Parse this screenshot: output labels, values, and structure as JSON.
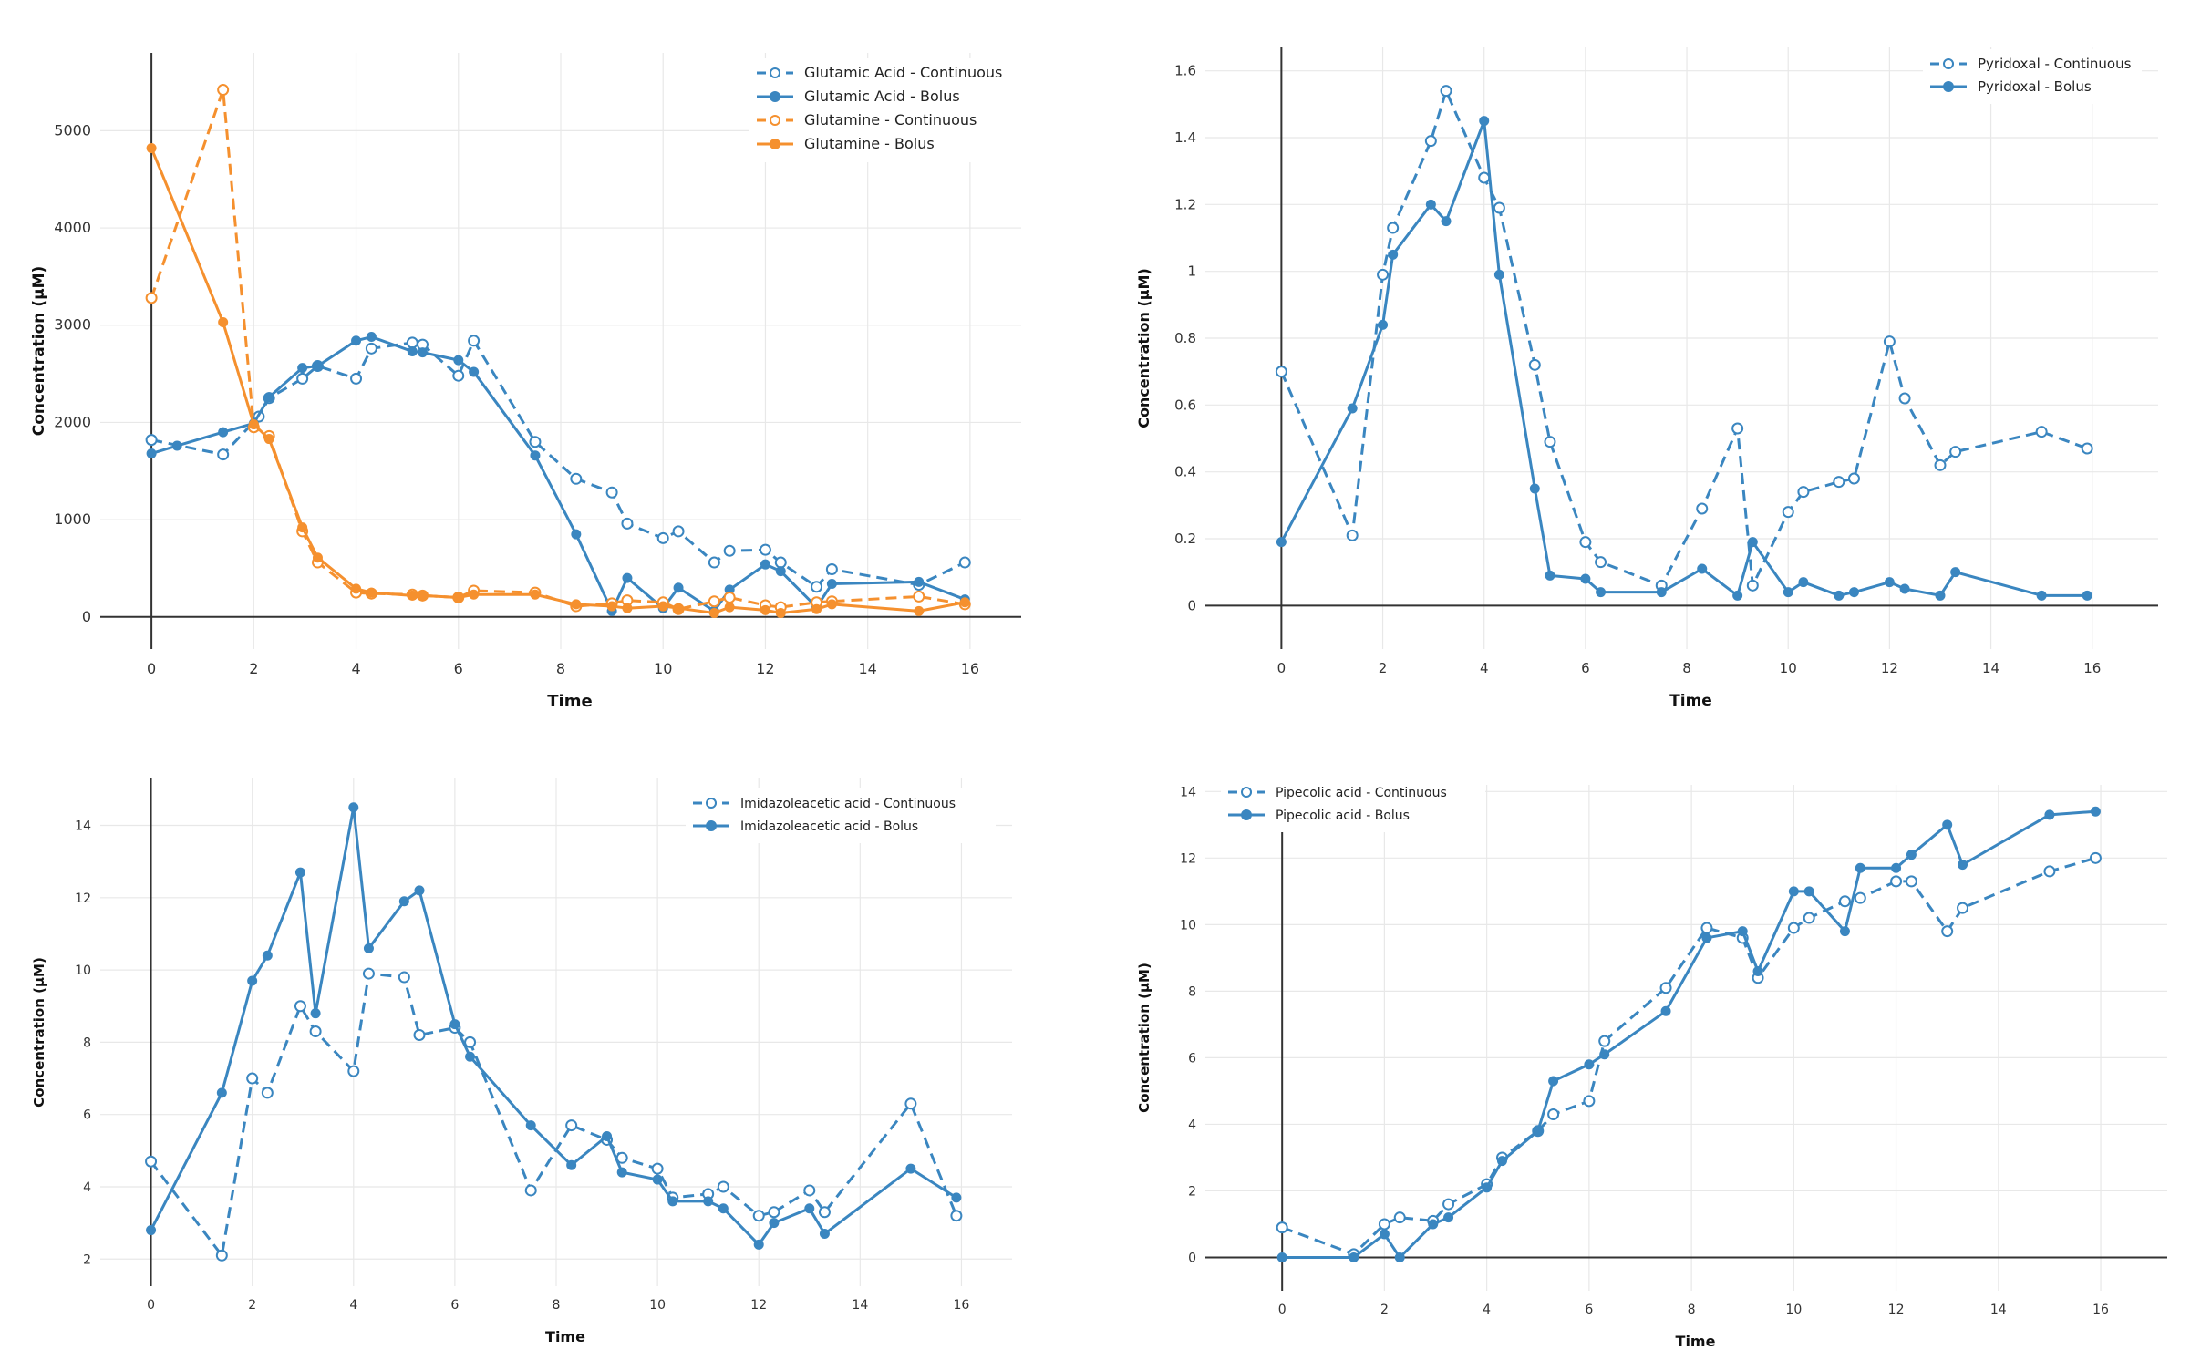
{
  "colors": {
    "blue": "#3a86c0",
    "orange": "#f5902e",
    "grid": "#e8e8e8",
    "axis": "#333333"
  },
  "chart_data": [
    {
      "type": "line",
      "xlabel": "Time",
      "ylabel": "Concentration (μM)",
      "xlim": [
        -1,
        17
      ],
      "ylim": [
        -330,
        5800
      ],
      "xticks": [
        0,
        2,
        4,
        6,
        8,
        10,
        12,
        14,
        16
      ],
      "xticklabels": [
        "0",
        "2",
        "4",
        "6",
        "8",
        "10",
        "12",
        "14",
        "16"
      ],
      "yticks": [
        0,
        1000,
        2000,
        3000,
        4000,
        5000
      ],
      "yticklabels": [
        "0",
        "1000",
        "2000",
        "3000",
        "4000",
        "5000"
      ],
      "grid": true,
      "legend_position": "top-right",
      "series": [
        {
          "name": "Glutamic Acid - Continuous",
          "color": "#3a86c0",
          "style": "dashed",
          "marker": "open",
          "x": [
            0,
            1.4,
            2.1,
            2.3,
            2.95,
            3.25,
            4.0,
            4.3,
            5.1,
            5.3,
            6.0,
            6.3,
            7.5,
            8.3,
            9.0,
            9.3,
            10.0,
            10.3,
            11.0,
            11.3,
            12.0,
            12.3,
            13.0,
            13.3,
            15.0,
            15.9
          ],
          "y": [
            1820,
            1670,
            2060,
            2250,
            2450,
            2580,
            2450,
            2760,
            2820,
            2800,
            2480,
            2840,
            1800,
            1420,
            1280,
            960,
            810,
            880,
            560,
            680,
            690,
            560,
            310,
            490,
            330,
            560
          ]
        },
        {
          "name": "Glutamic Acid - Bolus",
          "color": "#3a86c0",
          "style": "solid",
          "marker": "filled",
          "x": [
            0,
            0.5,
            1.4,
            2.0,
            2.3,
            2.95,
            3.25,
            4.0,
            4.3,
            5.1,
            5.3,
            6.0,
            6.3,
            7.5,
            8.3,
            9.0,
            9.3,
            10.0,
            10.3,
            11.0,
            11.3,
            12.0,
            12.3,
            13.0,
            13.3,
            15.0,
            15.9
          ],
          "y": [
            1680,
            1760,
            1900,
            1990,
            2260,
            2560,
            2580,
            2840,
            2880,
            2730,
            2720,
            2640,
            2520,
            1660,
            850,
            60,
            400,
            90,
            300,
            60,
            280,
            540,
            470,
            100,
            340,
            360,
            180
          ]
        },
        {
          "name": "Glutamine - Continuous",
          "color": "#f5902e",
          "style": "dashed",
          "marker": "open",
          "x": [
            0,
            1.4,
            2.0,
            2.3,
            2.95,
            3.25,
            4.0,
            4.3,
            5.1,
            5.3,
            6.0,
            6.3,
            7.5,
            8.3,
            9.0,
            9.3,
            10.0,
            10.3,
            11.0,
            11.3,
            12.0,
            12.3,
            13.0,
            13.3,
            15.0,
            15.9
          ],
          "y": [
            3280,
            5420,
            1950,
            1860,
            880,
            560,
            250,
            240,
            230,
            220,
            200,
            270,
            250,
            110,
            140,
            170,
            150,
            80,
            160,
            200,
            120,
            100,
            150,
            160,
            210,
            130
          ]
        },
        {
          "name": "Glutamine - Bolus",
          "color": "#f5902e",
          "style": "solid",
          "marker": "filled",
          "x": [
            0,
            1.4,
            2.0,
            2.3,
            2.95,
            3.25,
            4.0,
            4.3,
            5.1,
            5.3,
            6.0,
            6.3,
            7.5,
            8.3,
            9.0,
            9.3,
            10.0,
            10.3,
            11.0,
            11.3,
            12.0,
            12.3,
            13.0,
            13.3,
            15.0,
            15.9
          ],
          "y": [
            4820,
            3030,
            1980,
            1830,
            920,
            610,
            290,
            250,
            220,
            220,
            200,
            230,
            230,
            130,
            110,
            90,
            110,
            90,
            40,
            100,
            70,
            40,
            80,
            130,
            60,
            150
          ]
        }
      ]
    },
    {
      "type": "line",
      "xlabel": "Time",
      "ylabel": "Concentration (μM)",
      "xlim": [
        -1.5,
        17.3
      ],
      "ylim": [
        -0.13,
        1.67
      ],
      "xticks": [
        0,
        2,
        4,
        6,
        8,
        10,
        12,
        14,
        16
      ],
      "xticklabels": [
        "0",
        "2",
        "4",
        "6",
        "8",
        "10",
        "12",
        "14",
        "16"
      ],
      "yticks": [
        0,
        0.2,
        0.4,
        0.6,
        0.8,
        1,
        1.2,
        1.4,
        1.6
      ],
      "yticklabels": [
        "0",
        "0.2",
        "0.4",
        "0.6",
        "0.8",
        "1",
        "1.2",
        "1.4",
        "1.6"
      ],
      "grid": true,
      "legend_position": "top-right",
      "series": [
        {
          "name": "Pyridoxal - Continuous",
          "color": "#3a86c0",
          "style": "dashed",
          "marker": "open",
          "x": [
            0,
            1.4,
            2.0,
            2.2,
            2.95,
            3.25,
            4.0,
            4.3,
            5.0,
            5.3,
            6.0,
            6.3,
            7.5,
            8.3,
            9.0,
            9.3,
            10.0,
            10.3,
            11.0,
            11.3,
            12.0,
            12.3,
            13.0,
            13.3,
            15.0,
            15.9
          ],
          "y": [
            0.7,
            0.21,
            0.99,
            1.13,
            1.39,
            1.54,
            1.28,
            1.19,
            0.72,
            0.49,
            0.19,
            0.13,
            0.06,
            0.29,
            0.53,
            0.06,
            0.28,
            0.34,
            0.37,
            0.38,
            0.79,
            0.62,
            0.42,
            0.46,
            0.52,
            0.47
          ]
        },
        {
          "name": "Pyridoxal - Bolus",
          "color": "#3a86c0",
          "style": "solid",
          "marker": "filled",
          "x": [
            0,
            1.4,
            2.0,
            2.2,
            2.95,
            3.25,
            4.0,
            4.3,
            5.0,
            5.3,
            6.0,
            6.3,
            7.5,
            8.3,
            9.0,
            9.3,
            10.0,
            10.3,
            11.0,
            11.3,
            12.0,
            12.3,
            13.0,
            13.3,
            15.0,
            15.9
          ],
          "y": [
            0.19,
            0.59,
            0.84,
            1.05,
            1.2,
            1.15,
            1.45,
            0.99,
            0.35,
            0.09,
            0.08,
            0.04,
            0.04,
            0.11,
            0.03,
            0.19,
            0.04,
            0.07,
            0.03,
            0.04,
            0.07,
            0.05,
            0.03,
            0.1,
            0.03,
            0.03
          ]
        }
      ]
    },
    {
      "type": "line",
      "xlabel": "Time",
      "ylabel": "Concentration (μM)",
      "xlim": [
        -1,
        17
      ],
      "ylim": [
        1.25,
        15.3
      ],
      "xticks": [
        0,
        2,
        4,
        6,
        8,
        10,
        12,
        14,
        16
      ],
      "xticklabels": [
        "0",
        "2",
        "4",
        "6",
        "8",
        "10",
        "12",
        "14",
        "16"
      ],
      "yticks": [
        2,
        4,
        6,
        8,
        10,
        12,
        14
      ],
      "yticklabels": [
        "2",
        "4",
        "6",
        "8",
        "10",
        "12",
        "14"
      ],
      "grid": true,
      "legend_position": "top-right",
      "series": [
        {
          "name": "Imidazoleacetic acid - Continuous",
          "color": "#3a86c0",
          "style": "dashed",
          "marker": "open",
          "x": [
            0,
            1.4,
            2.0,
            2.3,
            2.95,
            3.25,
            4.0,
            4.3,
            5.0,
            5.3,
            6.0,
            6.3,
            7.5,
            8.3,
            9.0,
            9.3,
            10.0,
            10.3,
            11.0,
            11.3,
            12.0,
            12.3,
            13.0,
            13.3,
            15.0,
            15.9
          ],
          "y": [
            4.7,
            2.1,
            7.0,
            6.6,
            9.0,
            8.3,
            7.2,
            9.9,
            9.8,
            8.2,
            8.4,
            8.0,
            3.9,
            5.7,
            5.3,
            4.8,
            4.5,
            3.7,
            3.8,
            4.0,
            3.2,
            3.3,
            3.9,
            3.3,
            6.3,
            3.2
          ]
        },
        {
          "name": "Imidazoleacetic acid - Bolus",
          "color": "#3a86c0",
          "style": "solid",
          "marker": "filled",
          "x": [
            0,
            1.4,
            2.0,
            2.3,
            2.95,
            3.25,
            4.0,
            4.3,
            5.0,
            5.3,
            6.0,
            6.3,
            7.5,
            8.3,
            9.0,
            9.3,
            10.0,
            10.3,
            11.0,
            11.3,
            12.0,
            12.3,
            13.0,
            13.3,
            15.0,
            15.9
          ],
          "y": [
            2.8,
            6.6,
            9.7,
            10.4,
            12.7,
            8.8,
            14.5,
            10.6,
            11.9,
            12.2,
            8.5,
            7.6,
            5.7,
            4.6,
            5.4,
            4.4,
            4.2,
            3.6,
            3.6,
            3.4,
            2.4,
            3.0,
            3.4,
            2.7,
            4.5,
            3.7
          ]
        }
      ]
    },
    {
      "type": "line",
      "xlabel": "Time",
      "ylabel": "Concentration (μM)",
      "xlim": [
        -1.5,
        17.3
      ],
      "ylim": [
        -1.0,
        14.2
      ],
      "xticks": [
        0,
        2,
        4,
        6,
        8,
        10,
        12,
        14,
        16
      ],
      "xticklabels": [
        "0",
        "2",
        "4",
        "6",
        "8",
        "10",
        "12",
        "14",
        "16"
      ],
      "yticks": [
        0,
        2,
        4,
        6,
        8,
        10,
        12,
        14
      ],
      "yticklabels": [
        "0",
        "2",
        "4",
        "6",
        "8",
        "10",
        "12",
        "14"
      ],
      "grid": true,
      "legend_position": "top-left",
      "series": [
        {
          "name": "Pipecolic acid - Continuous",
          "color": "#3a86c0",
          "style": "dashed",
          "marker": "open",
          "x": [
            0,
            1.4,
            2.0,
            2.3,
            2.95,
            3.25,
            4.0,
            4.3,
            5.0,
            5.3,
            6.0,
            6.3,
            7.5,
            8.3,
            9.0,
            9.3,
            10.0,
            10.3,
            11.0,
            11.3,
            12.0,
            12.3,
            13.0,
            13.3,
            15.0,
            15.9
          ],
          "y": [
            0.9,
            0.1,
            1.0,
            1.2,
            1.1,
            1.6,
            2.2,
            3.0,
            3.8,
            4.3,
            4.7,
            6.5,
            8.1,
            9.9,
            9.6,
            8.4,
            9.9,
            10.2,
            10.7,
            10.8,
            11.3,
            11.3,
            9.8,
            10.5,
            11.6,
            12.0
          ]
        },
        {
          "name": "Pipecolic acid - Bolus",
          "color": "#3a86c0",
          "style": "solid",
          "marker": "filled",
          "x": [
            0,
            1.4,
            2.0,
            2.3,
            2.95,
            3.25,
            4.0,
            4.3,
            5.0,
            5.3,
            6.0,
            6.3,
            7.5,
            8.3,
            9.0,
            9.3,
            10.0,
            10.3,
            11.0,
            11.3,
            12.0,
            12.3,
            13.0,
            13.3,
            15.0,
            15.9
          ],
          "y": [
            0.0,
            0.0,
            0.7,
            0.0,
            1.0,
            1.2,
            2.1,
            2.9,
            3.8,
            5.3,
            5.8,
            6.1,
            7.4,
            9.6,
            9.8,
            8.6,
            11.0,
            11.0,
            9.8,
            11.7,
            11.7,
            12.1,
            13.0,
            11.8,
            13.3,
            13.4
          ]
        }
      ]
    }
  ]
}
